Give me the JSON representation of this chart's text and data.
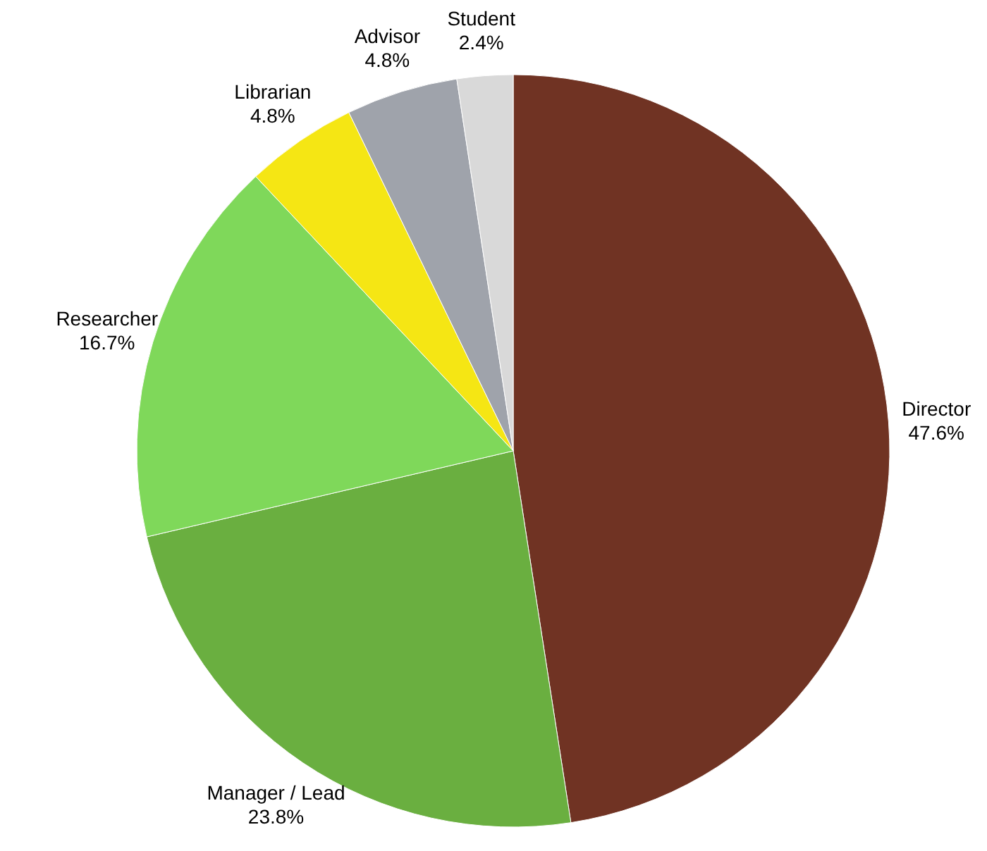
{
  "chart_data": {
    "type": "pie",
    "categories": [
      "Director",
      "Manager / Lead",
      "Researcher",
      "Librarian",
      "Advisor",
      "Student"
    ],
    "values": [
      47.6,
      23.8,
      16.7,
      4.8,
      4.8,
      2.4
    ],
    "value_labels": [
      "47.6%",
      "23.8%",
      "16.7%",
      "4.8%",
      "4.8%",
      "2.4%"
    ],
    "colors": [
      "#703323",
      "#6aaf40",
      "#7fd85a",
      "#f5e614",
      "#9fa3ab",
      "#d9d9d9"
    ]
  }
}
